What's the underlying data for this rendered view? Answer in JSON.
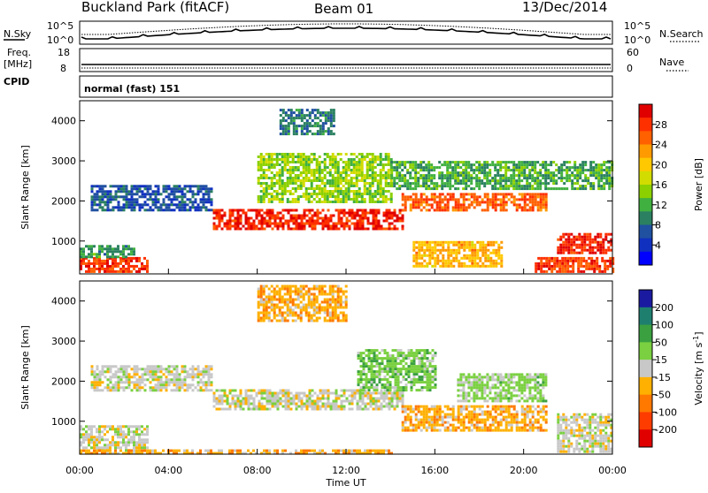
{
  "header": {
    "title": "Buckland Park (fitACF)",
    "beam": "Beam 01",
    "date": "13/Dec/2014"
  },
  "top_panel": {
    "nsky_label": "N.Sky",
    "nsearch_label": "N.Search",
    "exp_hi_left": "10^5",
    "exp_lo_left": "10^0",
    "exp_hi_right": "10^5",
    "exp_lo_right": "10^0",
    "freq_label_line1": "Freq.",
    "freq_label_line2": "[MHz]",
    "freq_ticks": [
      "18",
      "8"
    ],
    "nave_label": "Nave",
    "nave_ticks": [
      "60",
      "0"
    ],
    "cpid_label": "CPID",
    "cpid_value": "normal (fast) 151"
  },
  "axes": {
    "ylabel": "Slant Range [km]",
    "xlabel": "Time UT",
    "y_ticks": [
      "1000",
      "2000",
      "3000",
      "4000"
    ],
    "x_ticks": [
      "00:00",
      "04:00",
      "08:00",
      "12:00",
      "16:00",
      "20:00",
      "00:00"
    ]
  },
  "power_colorbar": {
    "label": "Power [dB]",
    "ticks": [
      "28",
      "24",
      "20",
      "16",
      "12",
      "8",
      "4"
    ],
    "colors": [
      "#e00000",
      "#ff3000",
      "#ff6000",
      "#ff9a00",
      "#ffc800",
      "#d2dc00",
      "#8cd000",
      "#40b040",
      "#2a8060",
      "#2050a0",
      "#1030c0",
      "#0000ff"
    ]
  },
  "velocity_colorbar": {
    "label": "Velocity [m s",
    "label_sup": "-1",
    "label_end": "]",
    "ticks": [
      "200",
      "100",
      "50",
      "15",
      "-15",
      "-50",
      "-100",
      "-200"
    ],
    "colors": [
      "#1a1aa0",
      "#1f7f6f",
      "#3aa040",
      "#7ad040",
      "#c8c8c8",
      "#ffb000",
      "#ff7800",
      "#ff3c00",
      "#e00000"
    ]
  },
  "chart_data": [
    {
      "type": "heatmap",
      "title": "Power",
      "x": [
        "00:00",
        "04:00",
        "08:00",
        "12:00",
        "16:00",
        "20:00",
        "00:00"
      ],
      "xlabel": "Time UT",
      "ylabel": "Slant Range [km]",
      "ylim": [
        180,
        4500
      ],
      "xlim_hours": [
        0,
        24
      ],
      "colorbar": {
        "label": "Power [dB]",
        "range": [
          0,
          30
        ]
      },
      "regions": [
        {
          "t0": 0.0,
          "t1": 3.0,
          "r0": 250,
          "r1": 600,
          "value": 26
        },
        {
          "t0": 0.0,
          "t1": 2.5,
          "r0": 600,
          "r1": 900,
          "value": 10
        },
        {
          "t0": 0.5,
          "t1": 6.0,
          "r0": 1800,
          "r1": 2400,
          "value": 6
        },
        {
          "t0": 6.0,
          "t1": 14.5,
          "r0": 1300,
          "r1": 1800,
          "value": 27
        },
        {
          "t0": 14.5,
          "t1": 21.0,
          "r0": 1800,
          "r1": 2200,
          "value": 24
        },
        {
          "t0": 8.0,
          "t1": 14.0,
          "r0": 2000,
          "r1": 3200,
          "value": 14
        },
        {
          "t0": 14.0,
          "t1": 24.0,
          "r0": 2300,
          "r1": 3000,
          "value": 11
        },
        {
          "t0": 21.5,
          "t1": 24.0,
          "r0": 700,
          "r1": 1200,
          "value": 27
        },
        {
          "t0": 20.5,
          "t1": 24.0,
          "r0": 250,
          "r1": 600,
          "value": 26
        },
        {
          "t0": 15.0,
          "t1": 19.0,
          "r0": 350,
          "r1": 1000,
          "value": 20
        },
        {
          "t0": 9.0,
          "t1": 11.5,
          "r0": 3700,
          "r1": 4300,
          "value": 8
        }
      ]
    },
    {
      "type": "heatmap",
      "title": "Velocity",
      "x": [
        "00:00",
        "04:00",
        "08:00",
        "12:00",
        "16:00",
        "20:00",
        "00:00"
      ],
      "xlabel": "Time UT",
      "ylabel": "Slant Range [km]",
      "ylim": [
        180,
        4500
      ],
      "xlim_hours": [
        0,
        24
      ],
      "colorbar": {
        "label": "Velocity [m s-1]",
        "range": [
          -250,
          250
        ]
      },
      "regions": [
        {
          "t0": 0.0,
          "t1": 3.0,
          "r0": 250,
          "r1": 900,
          "value": 0
        },
        {
          "t0": 6.0,
          "t1": 14.5,
          "r0": 1300,
          "r1": 1800,
          "value": 0
        },
        {
          "t0": 0.5,
          "t1": 6.0,
          "r0": 1800,
          "r1": 2400,
          "value": 0
        },
        {
          "t0": 8.0,
          "t1": 12.0,
          "r0": 3500,
          "r1": 4400,
          "value": -60
        },
        {
          "t0": 12.5,
          "t1": 16.0,
          "r0": 1800,
          "r1": 2800,
          "value": 60
        },
        {
          "t0": 17.0,
          "t1": 21.0,
          "r0": 1500,
          "r1": 2200,
          "value": 40
        },
        {
          "t0": 14.5,
          "t1": 21.0,
          "r0": 800,
          "r1": 1400,
          "value": -60
        },
        {
          "t0": 21.5,
          "t1": 24.0,
          "r0": 250,
          "r1": 1200,
          "value": 0
        },
        {
          "t0": 0.0,
          "t1": 14.0,
          "r0": 200,
          "r1": 300,
          "value": -60
        }
      ]
    }
  ]
}
